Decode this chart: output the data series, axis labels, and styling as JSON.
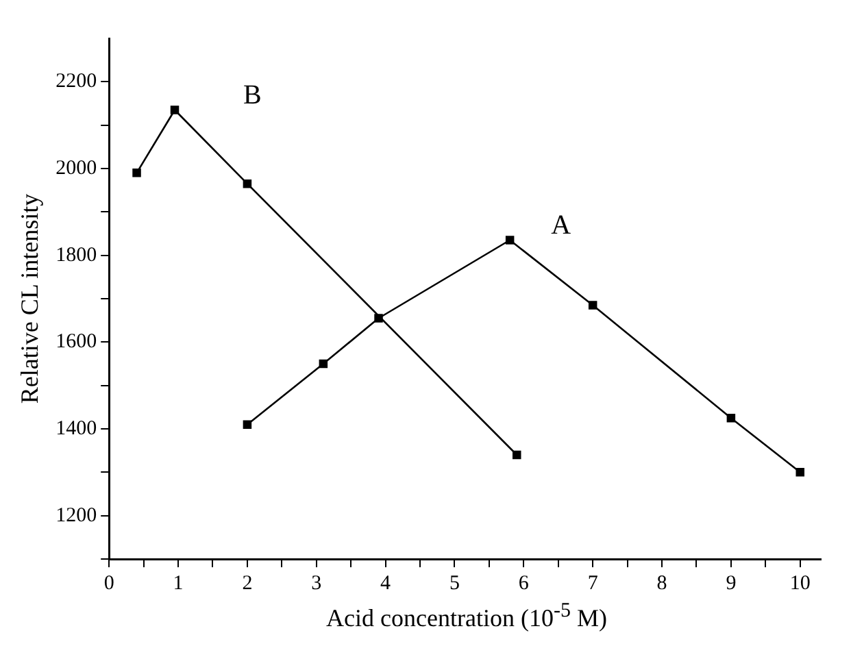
{
  "chart_data": {
    "type": "line",
    "xlabel": "Acid concentration (10$^{-5}$ M)",
    "ylabel": "Relative CL intensity",
    "xlim": [
      0,
      10.3
    ],
    "ylim": [
      1100,
      2300
    ],
    "xticks": [
      0,
      {
        "value": 0.5,
        "label": null
      },
      1,
      {
        "value": 1.5,
        "label": null
      },
      2,
      {
        "value": 2.5,
        "label": null
      },
      3,
      {
        "value": 3.5,
        "label": null
      },
      4,
      {
        "value": 4.5,
        "label": null
      },
      5,
      {
        "value": 5.5,
        "label": null
      },
      6,
      {
        "value": 6.5,
        "label": null
      },
      7,
      {
        "value": 7.5,
        "label": null
      },
      8,
      {
        "value": 8.5,
        "label": null
      },
      9,
      {
        "value": 9.5,
        "label": null
      },
      10
    ],
    "yticks": [
      {
        "value": 1100,
        "label": null
      },
      1200,
      {
        "value": 1300,
        "label": null
      },
      1400,
      {
        "value": 1500,
        "label": null
      },
      1600,
      {
        "value": 1700,
        "label": null
      },
      1800,
      {
        "value": 1900,
        "label": null
      },
      2000,
      {
        "value": 2100,
        "label": null
      },
      2200
    ],
    "series": [
      {
        "name": "A",
        "color": "#000000",
        "x": [
          2,
          3.1,
          3.9,
          5.8,
          7,
          9,
          10
        ],
        "values": [
          1410,
          1550,
          1655,
          1835,
          1685,
          1425,
          1300
        ]
      },
      {
        "name": "B",
        "color": "#000000",
        "x": [
          0.4,
          0.95,
          2,
          5.9
        ],
        "values": [
          1990,
          2135,
          1965,
          1340
        ]
      }
    ],
    "marker": "square",
    "line_style": "solid",
    "grid": false,
    "legend": false
  }
}
